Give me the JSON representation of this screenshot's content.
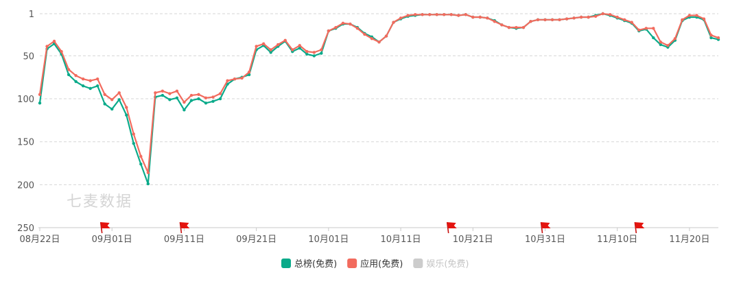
{
  "watermark": "七麦数据",
  "chart_data": {
    "type": "line",
    "y_inverted": true,
    "ylim": [
      1,
      250
    ],
    "yticks": [
      1,
      50,
      100,
      150,
      200,
      250
    ],
    "grid": true,
    "legend_position": "bottom-center",
    "x_start": "2023-08-22",
    "x_end": "2023-11-23",
    "x_tick_labels": [
      "08月22日",
      "09月01日",
      "09月11日",
      "09月21日",
      "10月01日",
      "10月11日",
      "10月21日",
      "10月31日",
      "11月10日",
      "11月20日"
    ],
    "flags": [
      "08-31",
      "09-11",
      "10-18",
      "10-31",
      "11-13"
    ],
    "series": [
      {
        "name": "总榜(免费)",
        "color": "#0aaa8a",
        "values": [
          105,
          42,
          36,
          48,
          72,
          80,
          85,
          88,
          85,
          106,
          112,
          101,
          119,
          152,
          176,
          199,
          98,
          96,
          101,
          99,
          113,
          102,
          100,
          105,
          103,
          100,
          83,
          77,
          75,
          72,
          43,
          38,
          46,
          39,
          33,
          45,
          41,
          48,
          50,
          47,
          21,
          18,
          13,
          13,
          17,
          24,
          28,
          34,
          27,
          11,
          7,
          4,
          3,
          2,
          2,
          2,
          2,
          2,
          3,
          2,
          5,
          5,
          6,
          9,
          14,
          17,
          18,
          17,
          10,
          8,
          8,
          8,
          8,
          7,
          6,
          5,
          5,
          3,
          1,
          3,
          6,
          9,
          12,
          21,
          19,
          29,
          37,
          40,
          32,
          9,
          5,
          5,
          8,
          29,
          31
        ]
      },
      {
        "name": "应用(免费)",
        "color": "#f26b5e",
        "values": [
          95,
          39,
          33,
          45,
          66,
          73,
          77,
          79,
          77,
          95,
          101,
          93,
          110,
          141,
          167,
          186,
          93,
          91,
          94,
          91,
          104,
          96,
          95,
          99,
          98,
          94,
          79,
          77,
          76,
          69,
          39,
          36,
          43,
          37,
          32,
          43,
          38,
          45,
          46,
          43,
          21,
          17,
          12,
          13,
          18,
          25,
          30,
          34,
          27,
          11,
          6,
          3,
          2,
          2,
          2,
          2,
          2,
          2,
          3,
          2,
          5,
          5,
          6,
          10,
          14,
          17,
          17,
          17,
          10,
          8,
          8,
          8,
          8,
          7,
          6,
          5,
          5,
          4,
          1,
          2,
          5,
          8,
          11,
          20,
          18,
          18,
          34,
          38,
          30,
          8,
          3,
          3,
          7,
          26,
          29
        ]
      },
      {
        "name": "娱乐(免费)",
        "color": "#cccccc",
        "values": []
      }
    ]
  }
}
